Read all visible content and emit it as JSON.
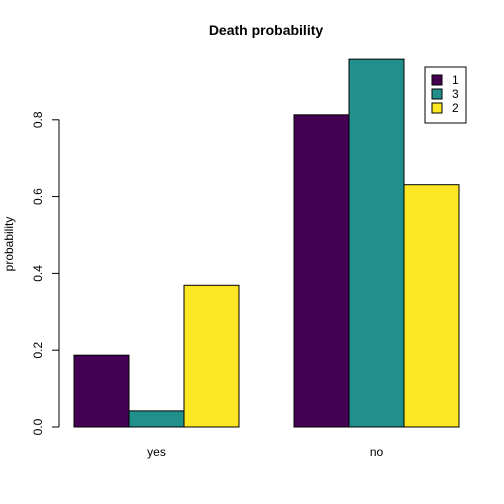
{
  "chart_data": {
    "type": "bar",
    "title": "Death probability",
    "xlabel": "",
    "ylabel": "probability",
    "categories": [
      "yes",
      "no"
    ],
    "series": [
      {
        "name": "1",
        "color": "#440154",
        "values": [
          0.187,
          0.813
        ]
      },
      {
        "name": "3",
        "color": "#21908C",
        "values": [
          0.042,
          0.958
        ]
      },
      {
        "name": "2",
        "color": "#FDE725",
        "values": [
          0.369,
          0.631
        ]
      }
    ],
    "ylim": [
      0,
      0.958
    ],
    "yticks": [
      "0.0",
      "0.2",
      "0.4",
      "0.6",
      "0.8"
    ],
    "grid": false,
    "legend_position": "top-right"
  }
}
